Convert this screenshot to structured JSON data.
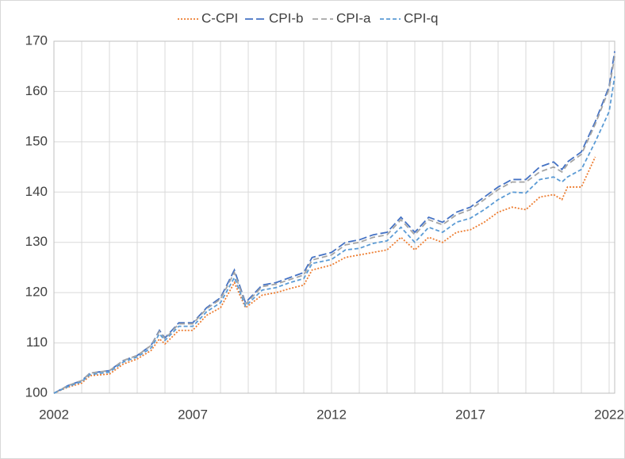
{
  "chart_data": {
    "type": "line",
    "x": [
      2002,
      2002.5,
      2003,
      2003.3,
      2004,
      2004.5,
      2005,
      2005.5,
      2005.8,
      2006,
      2006.5,
      2007,
      2007.5,
      2008,
      2008.5,
      2008.9,
      2009.5,
      2010,
      2010.5,
      2011,
      2011.3,
      2012,
      2012.5,
      2013,
      2013.5,
      2014,
      2014.5,
      2015,
      2015.5,
      2016,
      2016.5,
      2017,
      2017.5,
      2018,
      2018.5,
      2019,
      2019.5,
      2020,
      2020.3,
      2020.5,
      2021,
      2021.5,
      2022,
      2022.2
    ],
    "series": [
      {
        "name": "C-CPI",
        "color": "#ed7d31",
        "dash": "2,2",
        "values": [
          100,
          101.2,
          102,
          103.5,
          103.8,
          105.8,
          106.8,
          108.5,
          110.8,
          109.8,
          112.5,
          112.5,
          115.5,
          117,
          122,
          117,
          119.5,
          120,
          120.8,
          121.5,
          124.5,
          125.5,
          127,
          127.5,
          128,
          128.5,
          131,
          128.5,
          131,
          130,
          132,
          132.5,
          134,
          136,
          137,
          136.5,
          139,
          139.5,
          138.5,
          141,
          141,
          147,
          null,
          null
        ]
      },
      {
        "name": "CPI-b",
        "color": "#4472c4",
        "dash": "10,4",
        "values": [
          100,
          101.5,
          102.5,
          104,
          104.5,
          106.5,
          107.5,
          109.5,
          112.5,
          111,
          114,
          114,
          117,
          119,
          124.5,
          118,
          121.5,
          122,
          123,
          124,
          127,
          128,
          130,
          130.5,
          131.5,
          132,
          135,
          132,
          135,
          134,
          136,
          137,
          139,
          141,
          142.5,
          142.5,
          145,
          146,
          144.5,
          146,
          148,
          154,
          161,
          168
        ]
      },
      {
        "name": "CPI-a",
        "color": "#a5a5a5",
        "dash": "7,4",
        "values": [
          100,
          101.5,
          102.5,
          104,
          104.5,
          106.5,
          107.5,
          109.5,
          112.3,
          110.8,
          113.8,
          113.8,
          116.8,
          118.7,
          124,
          117.7,
          121.2,
          121.7,
          122.6,
          123.5,
          126.5,
          127.5,
          129.5,
          130,
          131,
          131.5,
          134.5,
          131.5,
          134.5,
          133.5,
          135.5,
          136.5,
          138.5,
          140.5,
          142,
          142,
          144,
          145,
          144,
          145.5,
          147.5,
          153.5,
          160.5,
          167
        ]
      },
      {
        "name": "CPI-q",
        "color": "#5b9bd5",
        "dash": "5,3",
        "values": [
          100,
          101.3,
          102.3,
          103.7,
          104.2,
          106.2,
          107.2,
          109,
          111.8,
          110.5,
          113.3,
          113.3,
          116.2,
          118,
          123,
          117.3,
          120.5,
          121,
          122,
          122.8,
          125.8,
          126.6,
          128.5,
          128.8,
          129.8,
          130.3,
          133,
          130,
          133,
          132,
          134,
          134.8,
          136.5,
          138.5,
          140,
          139.8,
          142.5,
          143,
          142,
          143,
          144.5,
          150,
          156,
          163
        ]
      }
    ],
    "xlim": [
      2002,
      2022.2
    ],
    "xticks": [
      2002,
      2007,
      2012,
      2017,
      2022
    ],
    "x_minor_grid": [
      2003,
      2004,
      2005,
      2006,
      2008,
      2009,
      2010,
      2011,
      2013,
      2014,
      2015,
      2016,
      2018,
      2019,
      2020,
      2021
    ],
    "ylim": [
      100,
      170
    ],
    "yticks": [
      100,
      110,
      120,
      130,
      140,
      150,
      160,
      170
    ],
    "grid": true,
    "legend": "top"
  }
}
